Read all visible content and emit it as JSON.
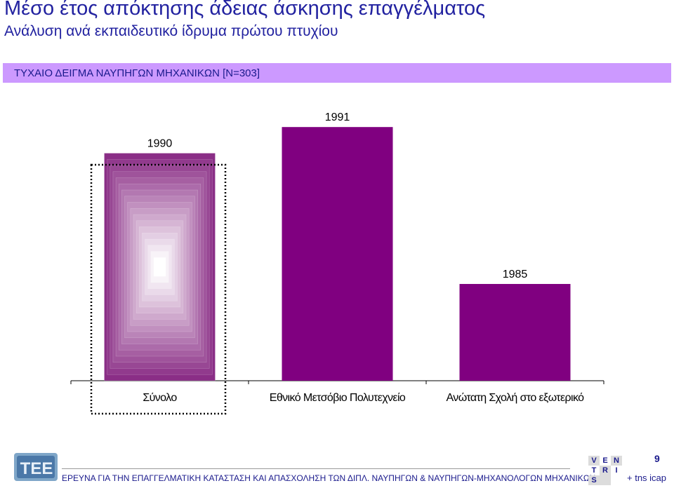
{
  "header": {
    "title": "Μέσο έτος απόκτησης άδειας άσκησης επαγγέλματος",
    "subtitle": "Ανάλυση ανά εκπαιδευτικό ίδρυμα πρώτου πτυχίου",
    "banner": "ΤΥΧΑΙΟ ΔΕΙΓΜΑ ΝΑΥΠΗΓΩΝ ΜΗΧΑΝΙΚΩΝ [Ν=303]"
  },
  "chart_data": {
    "type": "bar",
    "categories": [
      "Σύνολο",
      "Εθνικό Μετσόβιο Πολυτεχνείο",
      "Ανώτατη Σχολή στο εξωτερικό"
    ],
    "values": [
      1990,
      1991,
      1985
    ],
    "data_labels": [
      "1990",
      "1991",
      "1985"
    ],
    "highlighted_category": "Σύνολο",
    "grid": false,
    "colors": {
      "bar": "#800080",
      "highlight_edge": "#8a2e86",
      "highlight_center": "#ffffff"
    }
  },
  "footer": {
    "text": "ΕΡΕΥΝΑ ΓΙΑ ΤΗΝ ΕΠΑΓΓΕΛΜΑΤΙΚΗ ΚΑΤΑΣΤΑΣΗ ΚΑΙ ΑΠΑΣΧΟΛΗΣΗ ΤΩΝ ΔΙΠΛ. ΝΑΥΠΗΓΩΝ & ΝΑΥΠΗΓΩΝ-ΜΗΧΑΝΟΛΟΓΩΝ ΜΗΧΑΝΙΚΩΝ",
    "page_number": "9",
    "logo_text": "TEE",
    "venn_letters": [
      "V",
      "E",
      "N",
      "T",
      "R",
      "I",
      "S"
    ],
    "tns": "+ tns icap"
  }
}
